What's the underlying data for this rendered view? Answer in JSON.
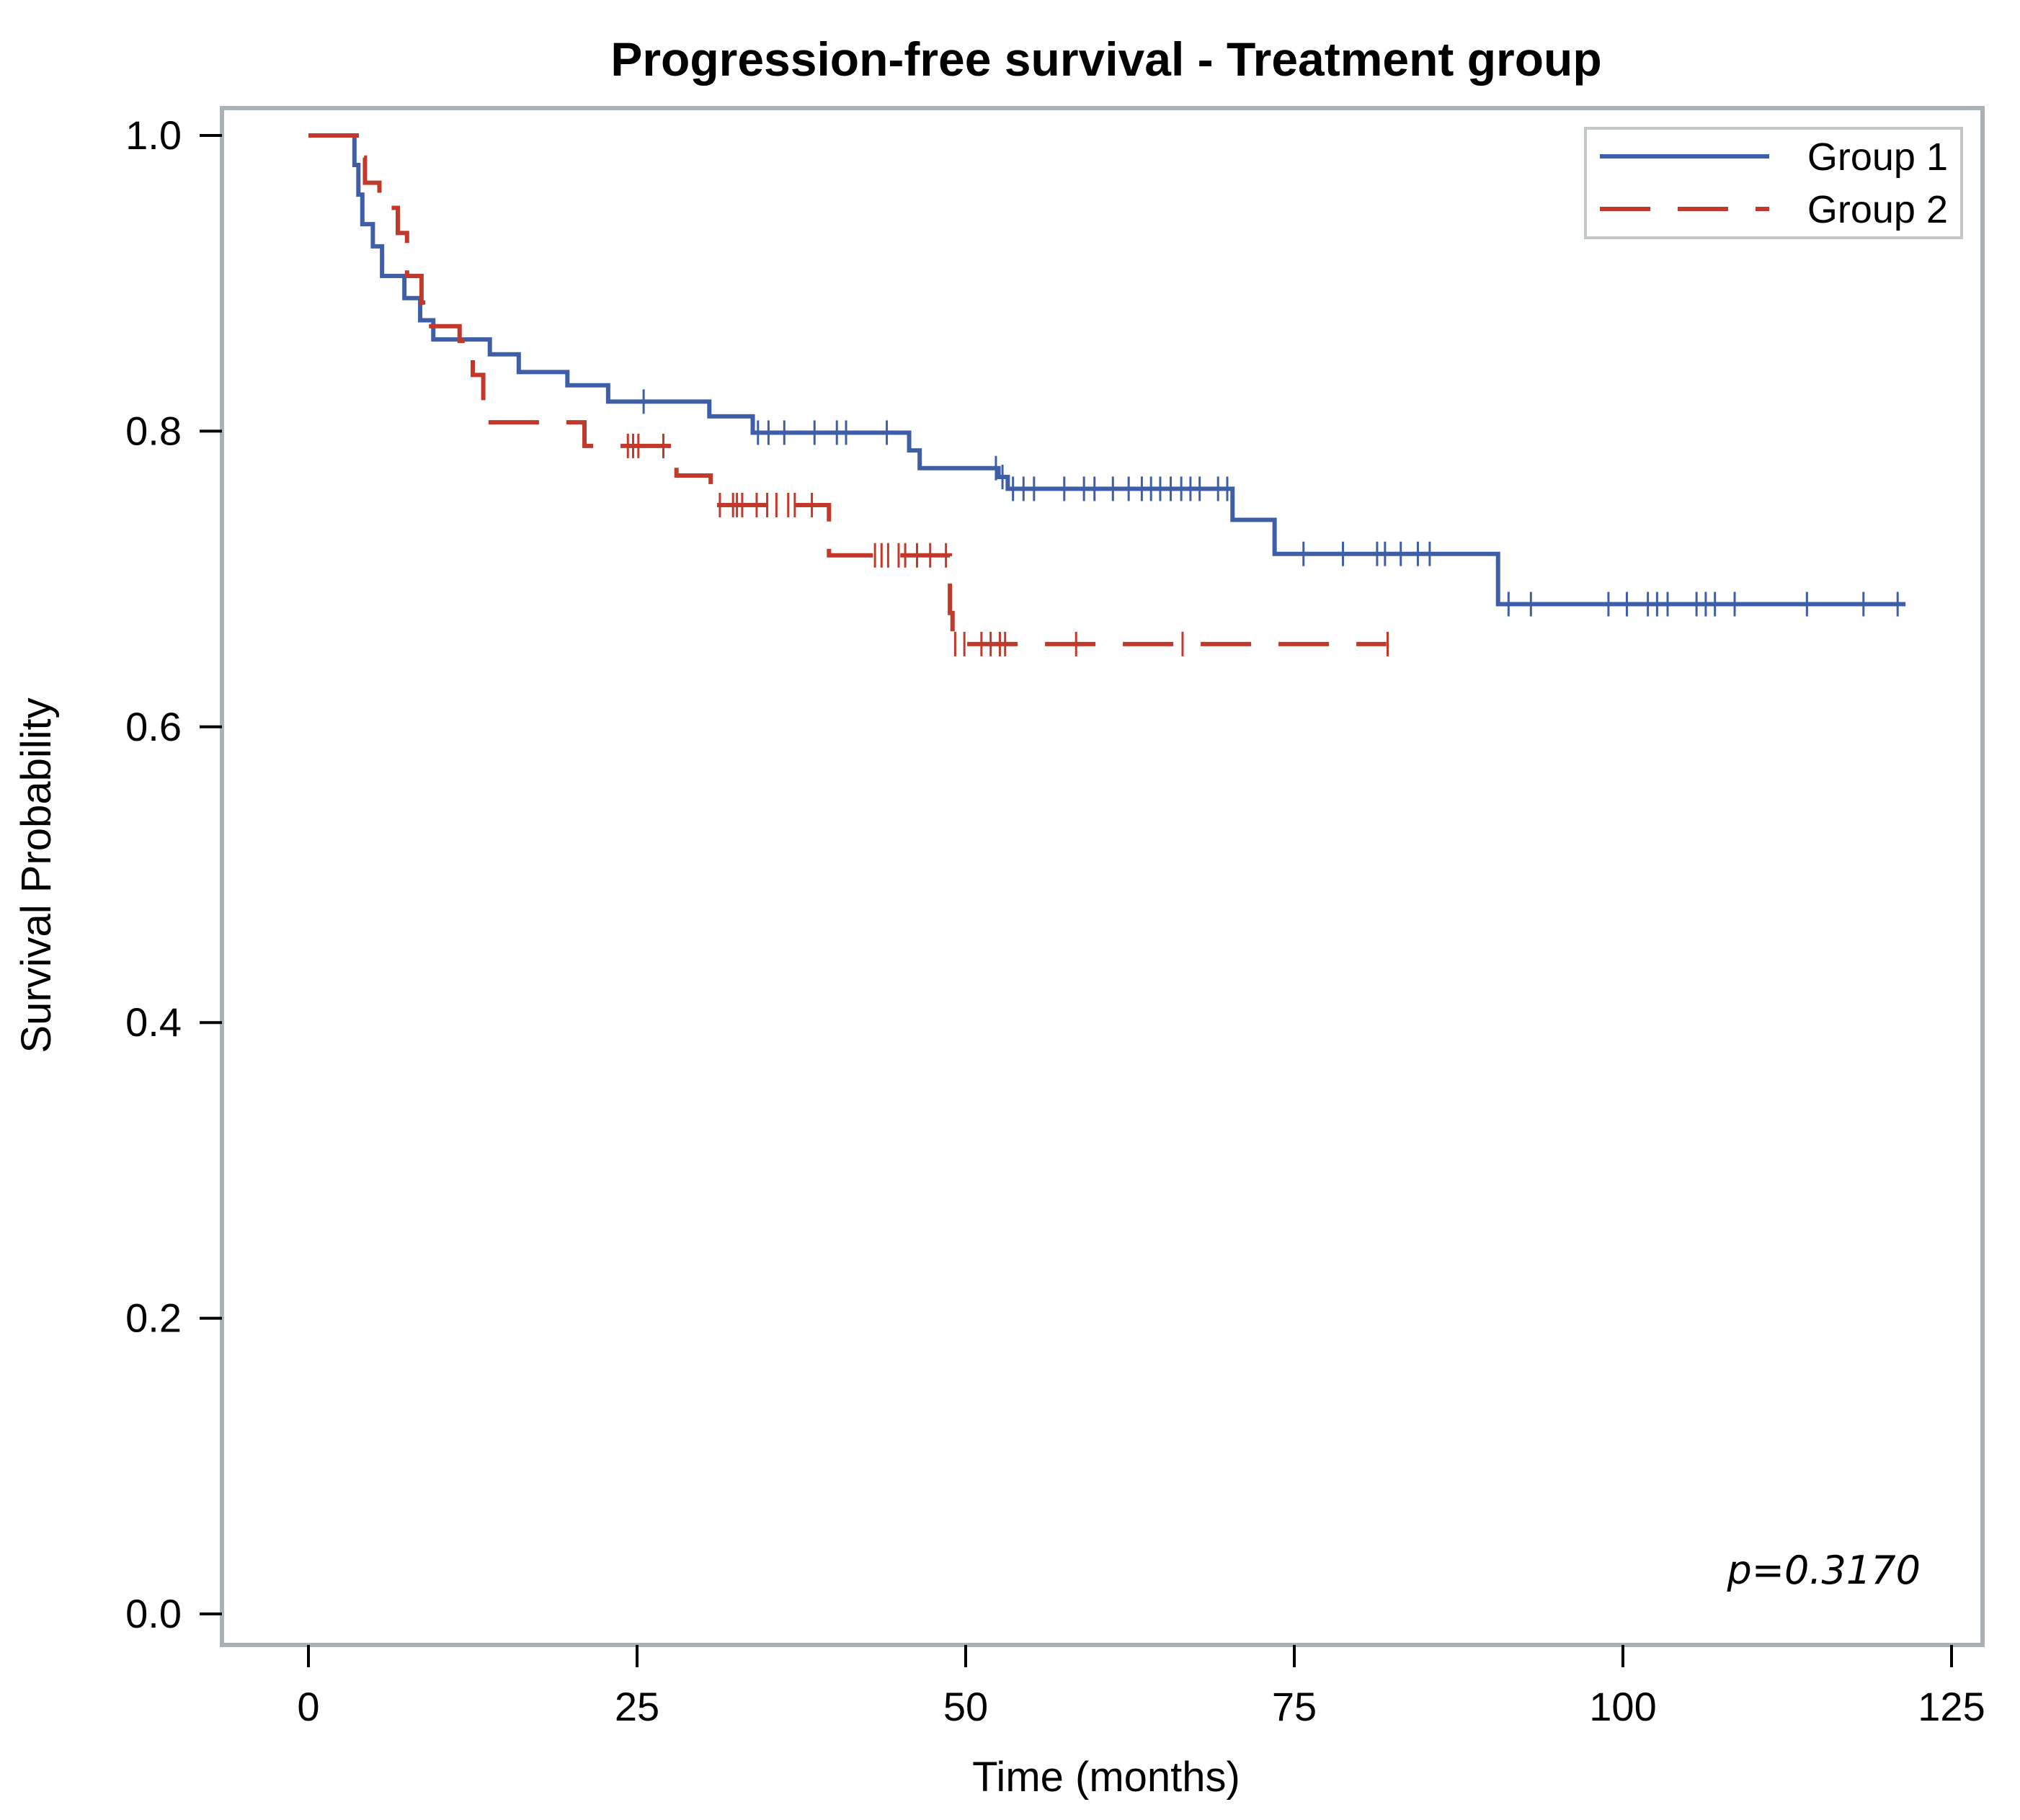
{
  "chart_data": {
    "type": "line",
    "subtype": "kaplan-meier step plot",
    "title": "Progression-free survival - Treatment group",
    "xlabel": "Time (months)",
    "ylabel": "Survival Probability",
    "xlim": [
      0,
      125
    ],
    "ylim": [
      0,
      1.0
    ],
    "x_ticks": [
      0,
      25,
      50,
      75,
      100,
      125
    ],
    "x_tick_labels": [
      "0",
      "25",
      "50",
      "75",
      "100",
      "125"
    ],
    "y_ticks": [
      0.0,
      0.2,
      0.4,
      0.6,
      0.8,
      1.0
    ],
    "y_tick_labels": [
      "0.0",
      "0.2",
      "0.4",
      "0.6",
      "0.8",
      "1.0"
    ],
    "grid": false,
    "legend_position": "top-right",
    "annotation": "p=0.3170",
    "series": [
      {
        "name": "Group 1",
        "color": "#3f5ea8",
        "dash": "solid",
        "steps": [
          [
            0,
            1.0
          ],
          [
            3.5,
            0.98
          ],
          [
            3.8,
            0.96
          ],
          [
            4.1,
            0.94
          ],
          [
            4.9,
            0.925
          ],
          [
            5.6,
            0.905
          ],
          [
            7.3,
            0.89
          ],
          [
            8.5,
            0.875
          ],
          [
            9.5,
            0.862
          ],
          [
            13.8,
            0.852
          ],
          [
            16,
            0.84
          ],
          [
            19.7,
            0.831
          ],
          [
            22.8,
            0.82
          ],
          [
            30.5,
            0.81
          ],
          [
            33.8,
            0.799
          ],
          [
            45.7,
            0.787
          ],
          [
            46.5,
            0.775
          ],
          [
            52.5,
            0.769
          ],
          [
            53.2,
            0.761
          ],
          [
            70.3,
            0.74
          ],
          [
            73.5,
            0.717
          ],
          [
            90.5,
            0.683
          ],
          [
            121.5,
            0.683
          ]
        ],
        "censored": [
          [
            25.5,
            0.82
          ],
          [
            34.2,
            0.799
          ],
          [
            35.0,
            0.799
          ],
          [
            36.2,
            0.799
          ],
          [
            38.5,
            0.799
          ],
          [
            40.2,
            0.799
          ],
          [
            40.9,
            0.799
          ],
          [
            44.0,
            0.799
          ],
          [
            52.3,
            0.775
          ],
          [
            52.8,
            0.769
          ],
          [
            53.6,
            0.761
          ],
          [
            54.4,
            0.761
          ],
          [
            55.2,
            0.761
          ],
          [
            57.5,
            0.761
          ],
          [
            59.0,
            0.761
          ],
          [
            59.8,
            0.761
          ],
          [
            61.2,
            0.761
          ],
          [
            62.4,
            0.761
          ],
          [
            63.4,
            0.761
          ],
          [
            64.1,
            0.761
          ],
          [
            64.8,
            0.761
          ],
          [
            65.6,
            0.761
          ],
          [
            66.4,
            0.761
          ],
          [
            67.1,
            0.761
          ],
          [
            67.8,
            0.761
          ],
          [
            69.2,
            0.761
          ],
          [
            69.9,
            0.761
          ],
          [
            75.7,
            0.717
          ],
          [
            78.7,
            0.717
          ],
          [
            81.3,
            0.717
          ],
          [
            81.9,
            0.717
          ],
          [
            83.1,
            0.717
          ],
          [
            84.4,
            0.717
          ],
          [
            85.3,
            0.717
          ],
          [
            91.3,
            0.683
          ],
          [
            93.0,
            0.683
          ],
          [
            98.9,
            0.683
          ],
          [
            100.3,
            0.683
          ],
          [
            101.9,
            0.683
          ],
          [
            102.6,
            0.683
          ],
          [
            103.4,
            0.683
          ],
          [
            105.6,
            0.683
          ],
          [
            106.3,
            0.683
          ],
          [
            107.0,
            0.683
          ],
          [
            108.5,
            0.683
          ],
          [
            114.0,
            0.683
          ],
          [
            118.3,
            0.683
          ],
          [
            120.9,
            0.683
          ]
        ]
      },
      {
        "name": "Group 2",
        "color": "#c0392b",
        "dash": "dashed",
        "steps": [
          [
            0,
            1.0
          ],
          [
            3.9,
            0.985
          ],
          [
            4.3,
            0.968
          ],
          [
            5.4,
            0.951
          ],
          [
            6.8,
            0.934
          ],
          [
            7.5,
            0.905
          ],
          [
            8.6,
            0.887
          ],
          [
            9.0,
            0.871
          ],
          [
            11.5,
            0.861
          ],
          [
            12.5,
            0.838
          ],
          [
            13.3,
            0.806
          ],
          [
            21.0,
            0.79
          ],
          [
            28.0,
            0.77
          ],
          [
            30.6,
            0.75
          ],
          [
            39.6,
            0.716
          ],
          [
            48.8,
            0.677
          ],
          [
            49.0,
            0.656
          ],
          [
            82.0,
            0.656
          ]
        ],
        "censored": [
          [
            24.3,
            0.79
          ],
          [
            24.7,
            0.79
          ],
          [
            25.1,
            0.79
          ],
          [
            27.0,
            0.79
          ],
          [
            31.3,
            0.75
          ],
          [
            32.3,
            0.75
          ],
          [
            32.6,
            0.75
          ],
          [
            33.0,
            0.75
          ],
          [
            34.1,
            0.75
          ],
          [
            34.9,
            0.75
          ],
          [
            35.6,
            0.75
          ],
          [
            36.5,
            0.75
          ],
          [
            37.0,
            0.75
          ],
          [
            38.3,
            0.75
          ],
          [
            43.1,
            0.716
          ],
          [
            43.6,
            0.716
          ],
          [
            44.1,
            0.716
          ],
          [
            44.9,
            0.716
          ],
          [
            45.4,
            0.716
          ],
          [
            46.3,
            0.716
          ],
          [
            47.3,
            0.716
          ],
          [
            48.5,
            0.716
          ],
          [
            49.2,
            0.656
          ],
          [
            49.9,
            0.656
          ],
          [
            51.2,
            0.656
          ],
          [
            51.9,
            0.656
          ],
          [
            52.6,
            0.656
          ],
          [
            53.0,
            0.656
          ],
          [
            58.4,
            0.656
          ],
          [
            66.5,
            0.656
          ],
          [
            82.1,
            0.656
          ]
        ]
      }
    ]
  }
}
